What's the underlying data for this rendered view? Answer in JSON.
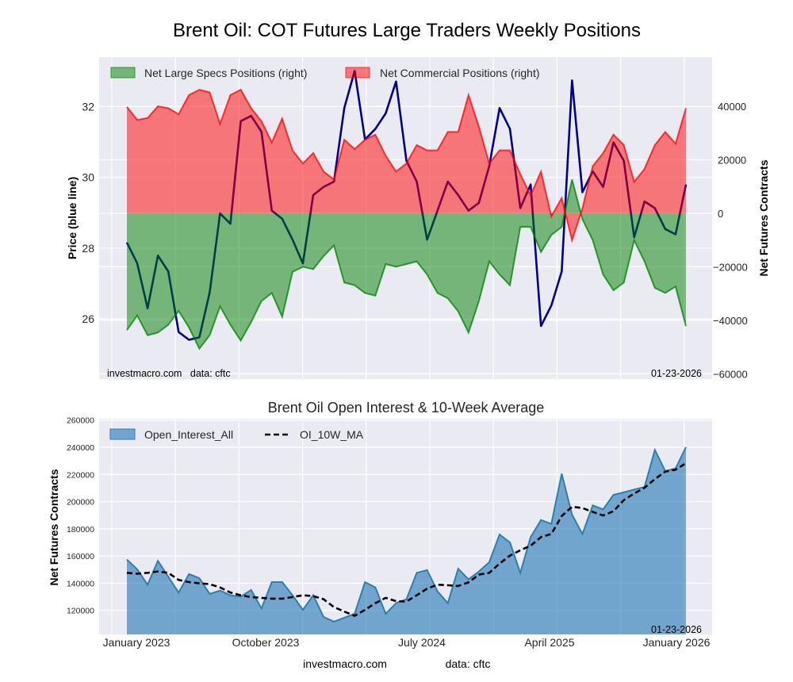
{
  "title": "Brent Oil: COT Futures Large Traders Weekly Positions",
  "footer": {
    "site": "investmacro.com",
    "source": "data: cftc"
  },
  "chart_data": [
    {
      "type": "line+area",
      "title": "Brent Oil: COT Futures Large Traders Weekly Positions",
      "ylabel_left": "Price (blue line)",
      "ylabel_right": "Net Futures Contracts",
      "y_left_ticks": [
        "32",
        "30",
        "28",
        "26"
      ],
      "y_left_range": [
        24.3,
        33.4
      ],
      "y_right_ticks": [
        "40000",
        "20000",
        "0",
        "−20000",
        "−40000",
        "−60000"
      ],
      "y_right_range": [
        -62000,
        58400
      ],
      "grid": true,
      "legend_placement": "top-left",
      "watermark_left": "investmacro.com   data: cftc",
      "watermark_right": "01-23-2026",
      "end_date": "01-23-2026",
      "colors": {
        "price": "#00008b",
        "specs": "#008000",
        "commercial": "#ff0000",
        "background": "#eaeaf2"
      },
      "series": [
        {
          "name": "Net Large Specs Positions (right)",
          "axis": "right",
          "kind": "area",
          "values": [
            -43700,
            -38200,
            -45600,
            -44600,
            -41700,
            -36500,
            -42700,
            -50600,
            -45600,
            -34800,
            -41700,
            -47600,
            -40700,
            -32800,
            -29800,
            -38700,
            -21900,
            -20000,
            -20900,
            -16000,
            -12000,
            -25900,
            -26900,
            -29800,
            -30800,
            -19000,
            -20000,
            -19000,
            -18000,
            -22900,
            -29800,
            -31800,
            -36700,
            -44600,
            -32800,
            -18000,
            -22900,
            -26900,
            -5100,
            -5100,
            -14500,
            -8100,
            -5100,
            12600,
            -2200,
            -10100,
            -22900,
            -28800,
            -25900,
            -10100,
            -18000,
            -27900,
            -29800,
            -27400,
            -42200
          ]
        },
        {
          "name": "Net Commercial Positions (right)",
          "axis": "right",
          "kind": "area",
          "values": [
            39800,
            34900,
            35600,
            40000,
            39300,
            37000,
            44200,
            46200,
            45200,
            33400,
            44200,
            46200,
            39300,
            34400,
            26500,
            35400,
            23500,
            18600,
            22500,
            15600,
            12600,
            27500,
            24000,
            27500,
            29400,
            21500,
            15600,
            18600,
            25500,
            23500,
            23500,
            30400,
            30400,
            44200,
            32400,
            18600,
            23500,
            23500,
            14600,
            6700,
            15600,
            -1200,
            5700,
            -10100,
            1800,
            17600,
            22500,
            29400,
            25500,
            11700,
            16600,
            25500,
            30400,
            26000,
            39300
          ]
        },
        {
          "axis": "left",
          "kind": "line",
          "legend": false,
          "values": [
            28.16,
            27.57,
            26.3,
            27.79,
            27.34,
            25.63,
            25.41,
            25.48,
            26.75,
            28.98,
            28.69,
            31.59,
            31.74,
            31.29,
            29.06,
            28.83,
            28.24,
            27.57,
            29.5,
            29.73,
            29.88,
            31.96,
            33.01,
            31.07,
            31.37,
            31.81,
            32.71,
            30.47,
            29.88,
            28.24,
            29.06,
            29.88,
            29.5,
            29.06,
            29.28,
            30.32,
            31.96,
            31.37,
            29.13,
            29.8,
            25.8,
            26.38,
            27.34,
            32.74,
            29.58,
            30.17,
            29.73,
            30.99,
            30.47,
            28.31,
            29.32,
            29.13,
            28.54,
            28.39,
            29.8
          ]
        }
      ]
    },
    {
      "type": "area+line",
      "title": "Brent Oil Open Interest & 10-Week Average",
      "ylabel": "Net Futures Contracts",
      "y_ticks": [
        "260000",
        "240000",
        "220000",
        "200000",
        "180000",
        "160000",
        "140000",
        "120000"
      ],
      "y_range": [
        102300,
        261000
      ],
      "x_tick_labels": [
        "January 2023",
        "October 2023",
        "July 2024",
        "April 2025",
        "January 2026"
      ],
      "grid": true,
      "legend_placement": "top-left",
      "watermark_right": "01-23-2026",
      "colors": {
        "open_interest": "#1f77b4",
        "ma": "#000000"
      },
      "series": [
        {
          "name": "Open_Interest_All",
          "kind": "area",
          "values": [
            157400,
            150200,
            138900,
            156400,
            144700,
            133100,
            146700,
            143700,
            132100,
            134600,
            131100,
            130100,
            135000,
            121400,
            140800,
            140800,
            131100,
            120400,
            131100,
            115200,
            111700,
            114600,
            117500,
            140800,
            136900,
            117500,
            125300,
            128200,
            147600,
            149600,
            134000,
            125300,
            150600,
            142800,
            148600,
            155400,
            175800,
            170000,
            147600,
            173900,
            186500,
            183600,
            220500,
            190400,
            176200,
            197200,
            194300,
            205000,
            206900,
            208900,
            210800,
            238000,
            222500,
            224400,
            240000
          ]
        },
        {
          "name": "OI_10W_MA",
          "kind": "dashed-line",
          "values": [
            147600,
            147000,
            147600,
            148600,
            147600,
            142400,
            140800,
            139900,
            139300,
            136900,
            133100,
            131100,
            129800,
            129200,
            128600,
            128600,
            129800,
            131100,
            130500,
            128200,
            122400,
            119100,
            116000,
            120400,
            125300,
            129200,
            126800,
            126500,
            131100,
            136000,
            138900,
            138500,
            137900,
            140600,
            146300,
            147600,
            154400,
            160300,
            164200,
            167600,
            173900,
            176200,
            189400,
            196200,
            195300,
            192400,
            189800,
            192900,
            201100,
            206000,
            210200,
            216600,
            222100,
            223500,
            228300
          ]
        }
      ]
    }
  ]
}
